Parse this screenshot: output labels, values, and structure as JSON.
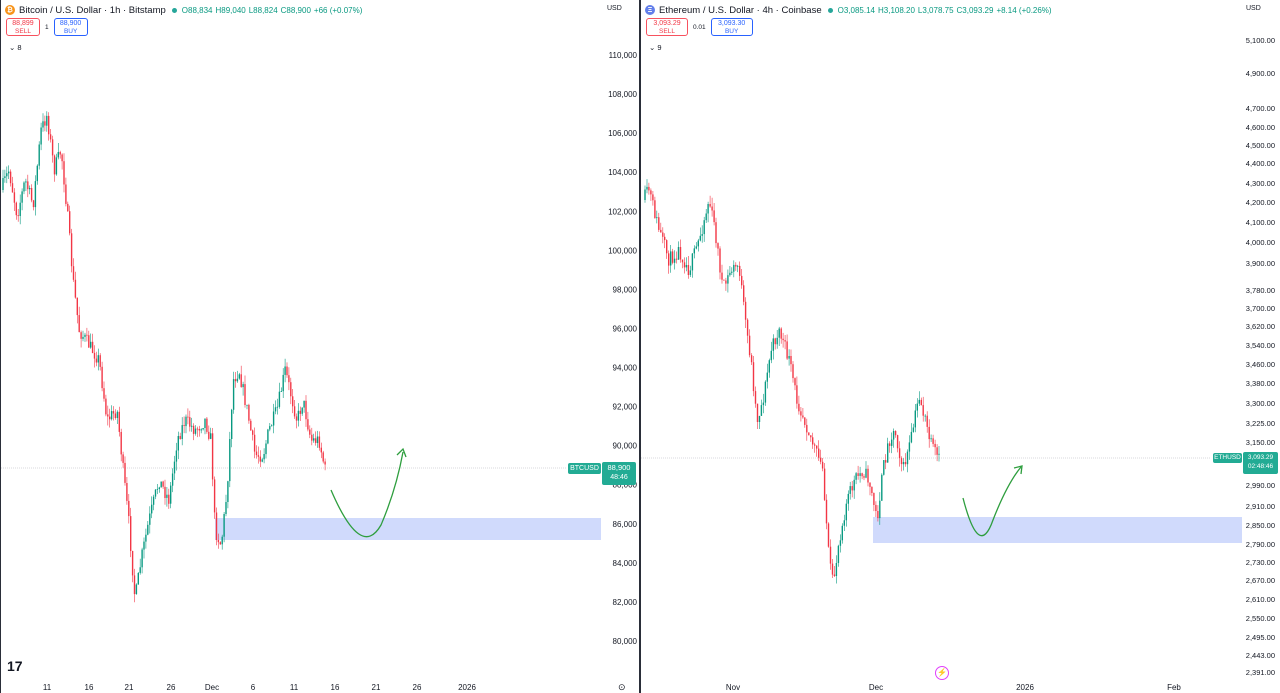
{
  "btc": {
    "title": "Bitcoin / U.S. Dollar · 1h · Bitstamp",
    "icon": "bitcoin-icon",
    "coin_glyph": "₿",
    "accent": "#f7931a",
    "ohlc": {
      "o": "O88,834",
      "h": "H89,040",
      "l": "L88,824",
      "c": "C88,900",
      "chg": "+66 (+0.07%)"
    },
    "sell_price": "88,899",
    "sell_label": "SELL",
    "spread": "1",
    "buy_price": "88,900",
    "buy_label": "BUY",
    "indicator_count": "8",
    "currency": "USD",
    "symbol_tag": "BTCUSD",
    "price_tag": "88,900",
    "countdown": "48:46",
    "y_ticks": [
      "110,000",
      "108,000",
      "106,000",
      "104,000",
      "102,000",
      "100,000",
      "98,000",
      "96,000",
      "94,000",
      "92,000",
      "90,000",
      "88,000",
      "86,000",
      "84,000",
      "82,000",
      "80,000"
    ],
    "x_ticks": [
      "11",
      "16",
      "21",
      "26",
      "Dec",
      "6",
      "11",
      "16",
      "21",
      "26",
      "2026"
    ]
  },
  "eth": {
    "title": "Ethereum / U.S. Dollar · 4h · Coinbase",
    "icon": "ethereum-icon",
    "coin_glyph": "Ξ",
    "accent": "#627eea",
    "ohlc": {
      "o": "O3,085.14",
      "h": "H3,108.20",
      "l": "L3,078.75",
      "c": "C3,093.29",
      "chg": "+8.14 (+0.26%)"
    },
    "sell_price": "3,093.29",
    "sell_label": "SELL",
    "spread": "0.01",
    "buy_price": "3,093.30",
    "buy_label": "BUY",
    "indicator_count": "9",
    "currency": "USD",
    "symbol_tag": "ETHUSD",
    "price_tag": "3,093.29",
    "countdown": "02:48:46",
    "y_ticks": [
      "5,100.00",
      "4,900.00",
      "4,700.00",
      "4,600.00",
      "4,500.00",
      "4,400.00",
      "4,300.00",
      "4,200.00",
      "4,100.00",
      "4,000.00",
      "3,900.00",
      "3,780.00",
      "3,700.00",
      "3,620.00",
      "3,540.00",
      "3,460.00",
      "3,380.00",
      "3,300.00",
      "3,225.00",
      "3,150.00",
      "2,990.00",
      "2,910.00",
      "2,850.00",
      "2,790.00",
      "2,730.00",
      "2,670.00",
      "2,610.00",
      "2,550.00",
      "2,495.00",
      "2,443.00",
      "2,391.00"
    ],
    "x_ticks": [
      "Nov",
      "Dec",
      "2026",
      "Feb"
    ]
  },
  "colors": {
    "up": "#089981",
    "down": "#f23645",
    "zone": "#c8d3fb",
    "arrow": "#2e9e3e",
    "tag_bg": "#22ab94"
  },
  "logo": "17"
}
